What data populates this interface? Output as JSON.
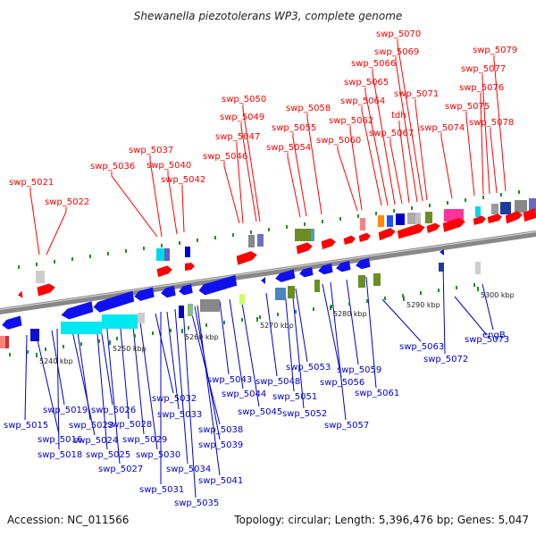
{
  "title": "Shewanella piezotolerans WP3, complete genome",
  "accession": "Accession: NC_011566",
  "summary": "Topology: circular; Length: 5,396,476 bp; Genes: 5,047",
  "colors": {
    "forward_label": "#ff0000",
    "reverse_label": "#0000cc",
    "backbone": "#888888",
    "tick": "#228822"
  },
  "scale": {
    "ticks": [
      {
        "text": "5240 kbp"
      },
      {
        "text": "5250 kbp"
      },
      {
        "text": "5260 kbp"
      },
      {
        "text": "5270 kbp"
      },
      {
        "text": "5280 kbp"
      },
      {
        "text": "5290 kbp"
      },
      {
        "text": "5300 kbp"
      }
    ]
  },
  "forward_genes": [
    {
      "text": "swp_5021"
    },
    {
      "text": "swp_5022"
    },
    {
      "text": "swp_5036"
    },
    {
      "text": "swp_5037"
    },
    {
      "text": "swp_5040"
    },
    {
      "text": "swp_5042"
    },
    {
      "text": "swp_5046"
    },
    {
      "text": "swp_5047"
    },
    {
      "text": "swp_5049"
    },
    {
      "text": "swp_5050"
    },
    {
      "text": "swp_5054"
    },
    {
      "text": "swp_5055"
    },
    {
      "text": "swp_5058"
    },
    {
      "text": "swp_5060"
    },
    {
      "text": "swp_5062"
    },
    {
      "text": "swp_5064"
    },
    {
      "text": "swp_5065"
    },
    {
      "text": "swp_5066"
    },
    {
      "text": "swp_5067"
    },
    {
      "text": "tdh"
    },
    {
      "text": "swp_5069"
    },
    {
      "text": "swp_5070"
    },
    {
      "text": "swp_5071"
    },
    {
      "text": "swp_5074"
    },
    {
      "text": "swp_5075"
    },
    {
      "text": "swp_5076"
    },
    {
      "text": "swp_5077"
    },
    {
      "text": "swp_5078"
    },
    {
      "text": "swp_5079"
    }
  ],
  "reverse_genes": [
    {
      "text": "swp_5015"
    },
    {
      "text": "swp_5016"
    },
    {
      "text": "swp_5018"
    },
    {
      "text": "swp_5019"
    },
    {
      "text": "swp_5023"
    },
    {
      "text": "swp_5024"
    },
    {
      "text": "swp_5025"
    },
    {
      "text": "swp_5026"
    },
    {
      "text": "swp_5027"
    },
    {
      "text": "swp_5028"
    },
    {
      "text": "swp_5029"
    },
    {
      "text": "swp_5030"
    },
    {
      "text": "swp_5031"
    },
    {
      "text": "swp_5032"
    },
    {
      "text": "swp_5033"
    },
    {
      "text": "swp_5034"
    },
    {
      "text": "swp_5035"
    },
    {
      "text": "swp_5038"
    },
    {
      "text": "swp_5039"
    },
    {
      "text": "swp_5041"
    },
    {
      "text": "swp_5043"
    },
    {
      "text": "swp_5044"
    },
    {
      "text": "swp_5045"
    },
    {
      "text": "swp_5048"
    },
    {
      "text": "swp_5051"
    },
    {
      "text": "swp_5052"
    },
    {
      "text": "swp_5053"
    },
    {
      "text": "swp_5056"
    },
    {
      "text": "swp_5057"
    },
    {
      "text": "swp_5059"
    },
    {
      "text": "swp_5061"
    },
    {
      "text": "swp_5063"
    },
    {
      "text": "swp_5072"
    },
    {
      "text": "swp_5073"
    },
    {
      "text": "engB"
    }
  ]
}
